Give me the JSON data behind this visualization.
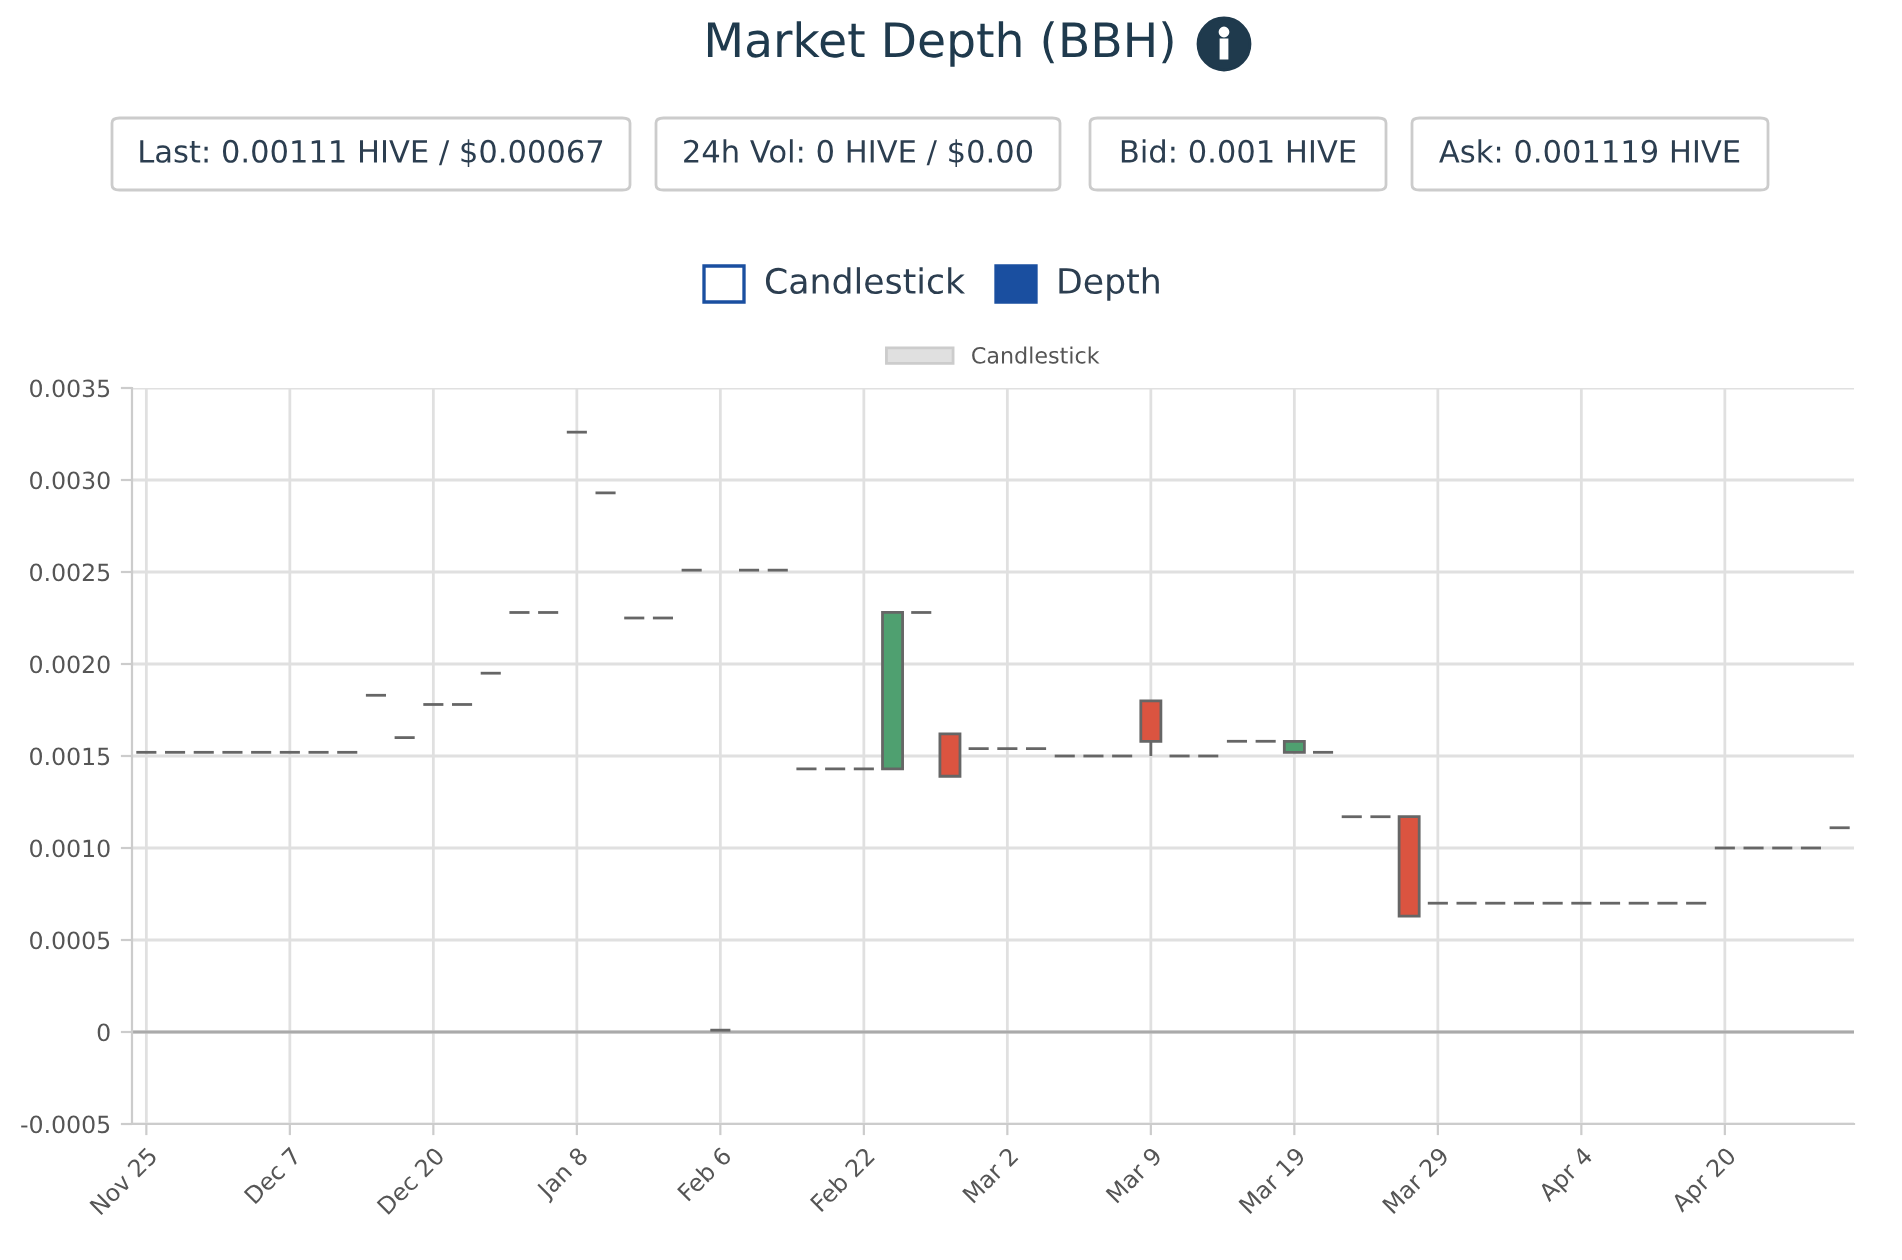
{
  "chart_data": {
    "type": "candlestick",
    "title": "Market Depth (BBH)",
    "annotations": [
      "Last: 0.00111 HIVE / $0.00067",
      "24h Vol: 0 HIVE / $0.00",
      "Bid: 0.001 HIVE",
      "Ask: 0.001119 HIVE",
      "Candlestick",
      "Depth"
    ],
    "categories": [
      "Nov 25",
      null,
      null,
      null,
      null,
      "Dec 7",
      null,
      null,
      null,
      null,
      "Dec 20",
      null,
      null,
      null,
      null,
      "Jan 8",
      null,
      null,
      null,
      null,
      "Feb 6",
      null,
      null,
      null,
      null,
      "Feb 22",
      null,
      null,
      null,
      null,
      "Mar 2",
      null,
      null,
      null,
      null,
      "Mar 9",
      null,
      null,
      null,
      null,
      "Mar 19",
      null,
      null,
      null,
      null,
      "Mar 29",
      null,
      null,
      null,
      null,
      "Apr 4",
      null,
      null,
      null,
      null,
      "Apr 20",
      null,
      null,
      null,
      null
    ],
    "series": [
      {
        "name": "Candlestick",
        "color": "#e0e0e0",
        "ohlc": [
          [
            0.00152,
            0.00152,
            0.00152,
            0.00152
          ],
          [
            0.00152,
            0.00152,
            0.00152,
            0.00152
          ],
          [
            0.00152,
            0.00152,
            0.00152,
            0.00152
          ],
          [
            0.00152,
            0.00152,
            0.00152,
            0.00152
          ],
          [
            0.00152,
            0.00152,
            0.00152,
            0.00152
          ],
          [
            0.00152,
            0.00152,
            0.00152,
            0.00152
          ],
          [
            0.00152,
            0.00152,
            0.00152,
            0.00152
          ],
          [
            0.00152,
            0.00152,
            0.00152,
            0.00152
          ],
          [
            0.00183,
            0.00183,
            0.00183,
            0.00183
          ],
          [
            0.0016,
            0.0016,
            0.0016,
            0.0016
          ],
          [
            0.00178,
            0.00178,
            0.00178,
            0.00178
          ],
          [
            0.00178,
            0.00178,
            0.00178,
            0.00178
          ],
          [
            0.00195,
            0.00195,
            0.00195,
            0.00195
          ],
          [
            0.00228,
            0.00228,
            0.00228,
            0.00228
          ],
          [
            0.00228,
            0.00228,
            0.00228,
            0.00228
          ],
          [
            0.00326,
            0.00326,
            0.00326,
            0.00326
          ],
          [
            0.00293,
            0.00293,
            0.00293,
            0.00293
          ],
          [
            0.00225,
            0.00225,
            0.00225,
            0.00225
          ],
          [
            0.00225,
            0.00225,
            0.00225,
            0.00225
          ],
          [
            0.00251,
            0.00251,
            0.00251,
            0.00251
          ],
          [
            1e-05,
            1e-05,
            1e-05,
            1e-05
          ],
          [
            0.00251,
            0.00251,
            0.00251,
            0.00251
          ],
          [
            0.00251,
            0.00251,
            0.00251,
            0.00251
          ],
          [
            0.00143,
            0.00143,
            0.00143,
            0.00143
          ],
          [
            0.00143,
            0.00143,
            0.00143,
            0.00143
          ],
          [
            0.00143,
            0.00143,
            0.00143,
            0.00143
          ],
          [
            0.00143,
            0.00228,
            0.00143,
            0.00228
          ],
          [
            0.00228,
            0.00228,
            0.00228,
            0.00228
          ],
          [
            0.00162,
            0.00162,
            0.00139,
            0.00139
          ],
          [
            0.00154,
            0.00154,
            0.00154,
            0.00154
          ],
          [
            0.00154,
            0.00154,
            0.00154,
            0.00154
          ],
          [
            0.00154,
            0.00154,
            0.00154,
            0.00154
          ],
          [
            0.0015,
            0.0015,
            0.0015,
            0.0015
          ],
          [
            0.0015,
            0.0015,
            0.0015,
            0.0015
          ],
          [
            0.0015,
            0.0015,
            0.0015,
            0.0015
          ],
          [
            0.0018,
            0.0018,
            0.0015,
            0.00158
          ],
          [
            0.0015,
            0.0015,
            0.0015,
            0.0015
          ],
          [
            0.0015,
            0.0015,
            0.0015,
            0.0015
          ],
          [
            0.00158,
            0.00158,
            0.00158,
            0.00158
          ],
          [
            0.00158,
            0.00158,
            0.00158,
            0.00158
          ],
          [
            0.00152,
            0.00158,
            0.00152,
            0.00158
          ],
          [
            0.00152,
            0.00152,
            0.00152,
            0.00152
          ],
          [
            0.00117,
            0.00117,
            0.00117,
            0.00117
          ],
          [
            0.00117,
            0.00117,
            0.00117,
            0.00117
          ],
          [
            0.00117,
            0.00117,
            0.00063,
            0.00063
          ],
          [
            0.0007,
            0.0007,
            0.0007,
            0.0007
          ],
          [
            0.0007,
            0.0007,
            0.0007,
            0.0007
          ],
          [
            0.0007,
            0.0007,
            0.0007,
            0.0007
          ],
          [
            0.0007,
            0.0007,
            0.0007,
            0.0007
          ],
          [
            0.0007,
            0.0007,
            0.0007,
            0.0007
          ],
          [
            0.0007,
            0.0007,
            0.0007,
            0.0007
          ],
          [
            0.0007,
            0.0007,
            0.0007,
            0.0007
          ],
          [
            0.0007,
            0.0007,
            0.0007,
            0.0007
          ],
          [
            0.0007,
            0.0007,
            0.0007,
            0.0007
          ],
          [
            0.0007,
            0.0007,
            0.0007,
            0.0007
          ],
          [
            0.001,
            0.001,
            0.001,
            0.001
          ],
          [
            0.001,
            0.001,
            0.001,
            0.001
          ],
          [
            0.001,
            0.001,
            0.001,
            0.001
          ],
          [
            0.001,
            0.001,
            0.001,
            0.001
          ],
          [
            0.00111,
            0.00111,
            0.00111,
            0.00111
          ]
        ],
        "colors": [
          "#666666",
          "#666666",
          "#666666",
          "#666666",
          "#666666",
          "#666666",
          "#666666",
          "#666666",
          "#666666",
          "#666666",
          "#666666",
          "#666666",
          "#666666",
          "#666666",
          "#666666",
          "#666666",
          "#666666",
          "#666666",
          "#666666",
          "#666666",
          "#666666",
          "#666666",
          "#666666",
          "#666666",
          "#666666",
          "#666666",
          "#4fa070",
          "#666666",
          "#db5440",
          "#666666",
          "#666666",
          "#666666",
          "#666666",
          "#666666",
          "#666666",
          "#db5440",
          "#666666",
          "#666666",
          "#666666",
          "#666666",
          "#4fa070",
          "#666666",
          "#666666",
          "#666666",
          "#db5440",
          "#666666",
          "#666666",
          "#666666",
          "#666666",
          "#666666",
          "#666666",
          "#666666",
          "#666666",
          "#666666",
          "#666666",
          "#666666",
          "#666666",
          "#666666",
          "#666666",
          "#666666"
        ]
      }
    ],
    "ylim": [
      -0.0005,
      0.0035
    ],
    "yticks": [
      {
        "value": -0.0005,
        "label": "-0.0005"
      },
      0,
      0.0005,
      {
        "value": 0.001,
        "label": "0.0010"
      },
      0.0015,
      {
        "value": 0.002,
        "label": "0.0020"
      },
      0.0025,
      {
        "value": 0.003,
        "label": "0.0030"
      },
      0.0035
    ],
    "grid": true,
    "legend": "top"
  }
}
